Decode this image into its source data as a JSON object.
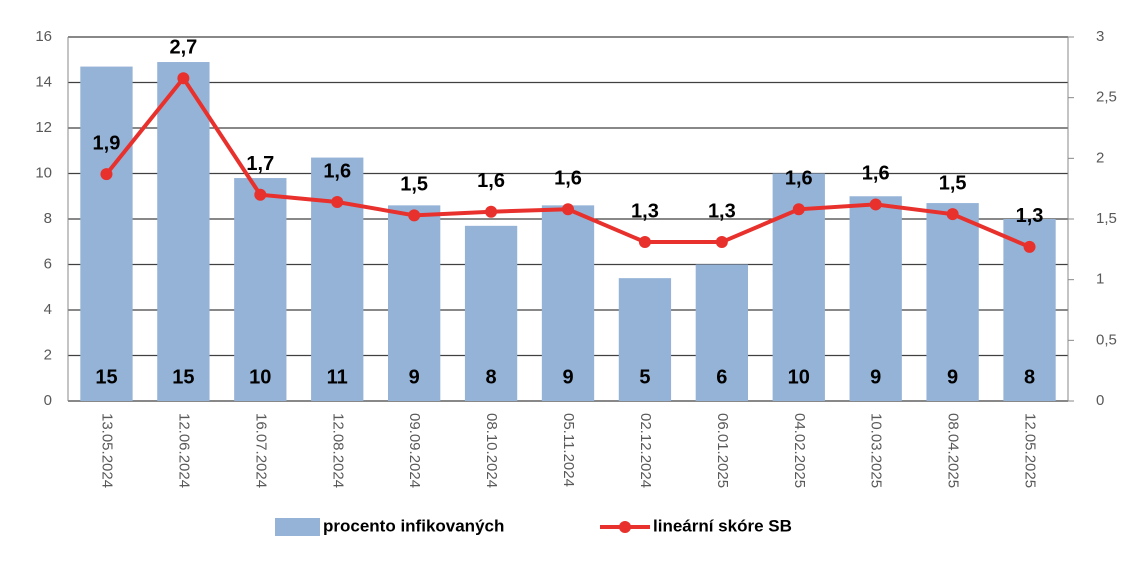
{
  "chart_data": {
    "type": "combo",
    "categories": [
      "13.05.2024",
      "12.06.2024",
      "16.07.2024",
      "12.08.2024",
      "09.09.2024",
      "08.10.2024",
      "05.11.2024",
      "02.12.2024",
      "06.01.2025",
      "04.02.2025",
      "10.03.2025",
      "08.04.2025",
      "12.05.2025"
    ],
    "series": [
      {
        "name": "procento infikovaných",
        "type": "bar",
        "color": "#95b3d7",
        "values": [
          14.7,
          14.9,
          9.8,
          10.7,
          8.6,
          7.7,
          8.6,
          5.4,
          6.0,
          10.0,
          9.0,
          8.7,
          8.0
        ],
        "value_labels": [
          "15",
          "15",
          "10",
          "11",
          "9",
          "8",
          "9",
          "5",
          "6",
          "10",
          "9",
          "9",
          "8"
        ]
      },
      {
        "name": "lineární skóre SB",
        "type": "line",
        "axis": "y2",
        "color": "#e8312c",
        "values": [
          1.87,
          2.66,
          1.7,
          1.64,
          1.53,
          1.56,
          1.58,
          1.31,
          1.31,
          1.58,
          1.62,
          1.54,
          1.27
        ],
        "value_labels": [
          "1,9",
          "2,7",
          "1,7",
          "1,6",
          "1,5",
          "1,6",
          "1,6",
          "1,3",
          "1,3",
          "1,6",
          "1,6",
          "1,5",
          "1,3"
        ]
      }
    ],
    "ylim": [
      0,
      16
    ],
    "yticks": [
      0,
      2,
      4,
      6,
      8,
      10,
      12,
      14,
      16
    ],
    "y2lim": [
      0,
      3
    ],
    "y2ticks": [
      0,
      {
        "value": 0.5,
        "label": "0,5"
      },
      1,
      {
        "value": 1.5,
        "label": "1,5"
      },
      2,
      {
        "value": 2.5,
        "label": "2,5"
      },
      3
    ],
    "grid": true
  }
}
